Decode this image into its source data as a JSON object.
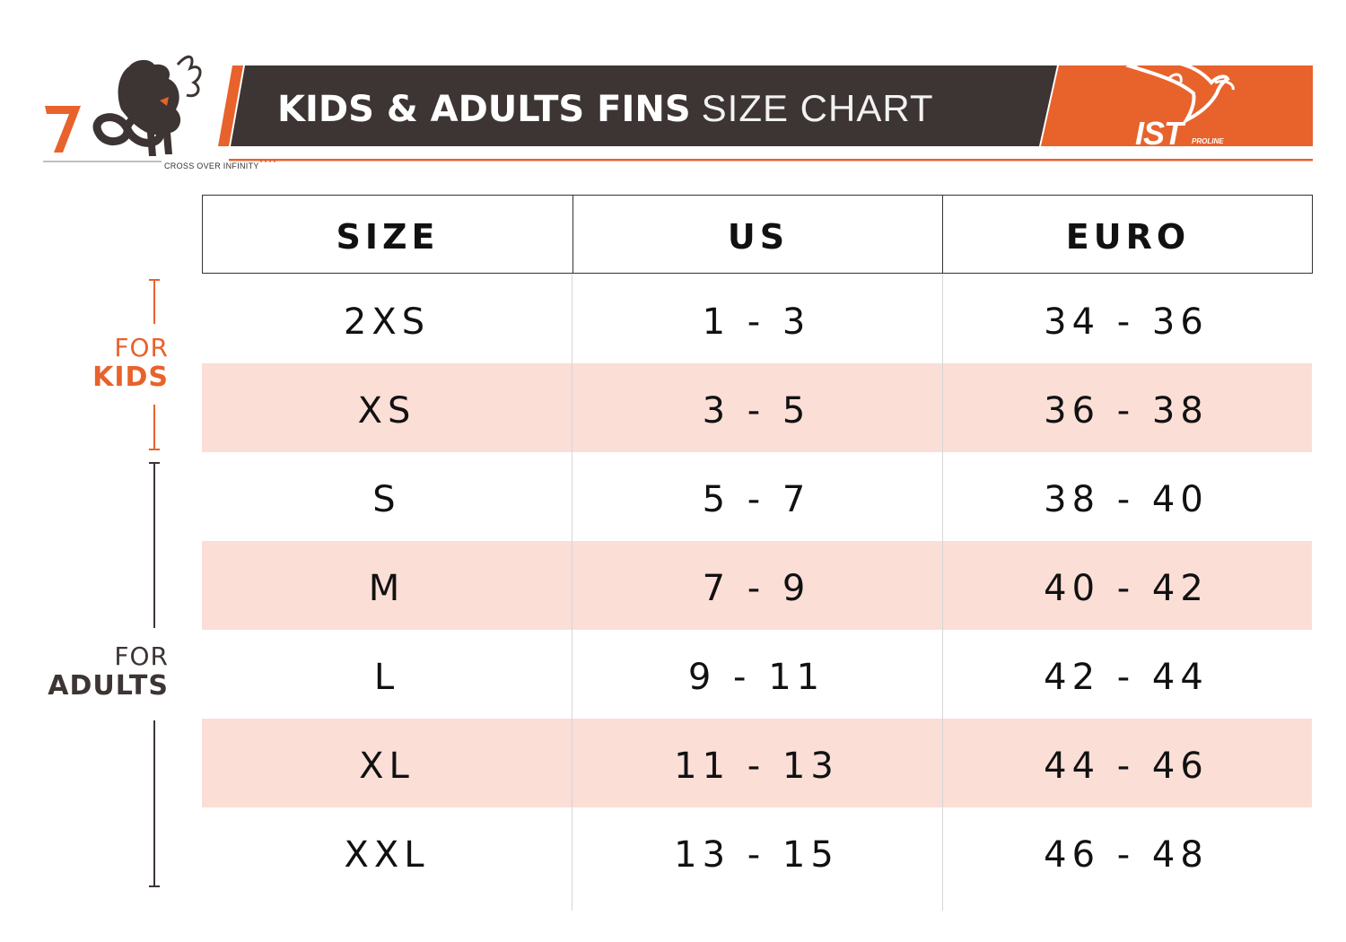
{
  "header": {
    "title_bold": "KIDS & ADULTS FINS",
    "title_light": "SIZE CHART",
    "logo_left_text": "CROSS OVER INFINITY",
    "logo_right_text": "IST",
    "logo_right_sub": "PROLINE"
  },
  "colors": {
    "accent_orange": "#e8622c",
    "header_dark": "#3d3533",
    "row_shade": "#fbded6"
  },
  "groups": {
    "kids": {
      "line1": "FOR",
      "line2": "KIDS"
    },
    "adults": {
      "line1": "FOR",
      "line2": "ADULTS"
    }
  },
  "table": {
    "headers": [
      "SIZE",
      "US",
      "EURO"
    ],
    "rows": [
      {
        "size": "2XS",
        "us": "1 - 3",
        "euro": "34 - 36"
      },
      {
        "size": "XS",
        "us": "3 - 5",
        "euro": "36 - 38"
      },
      {
        "size": "S",
        "us": "5 - 7",
        "euro": "38 - 40"
      },
      {
        "size": "M",
        "us": "7 - 9",
        "euro": "40 - 42"
      },
      {
        "size": "L",
        "us": "9 - 11",
        "euro": "42 - 44"
      },
      {
        "size": "XL",
        "us": "11 - 13",
        "euro": "44 - 46"
      },
      {
        "size": "XXL",
        "us": "13 - 15",
        "euro": "46 - 48"
      }
    ]
  }
}
